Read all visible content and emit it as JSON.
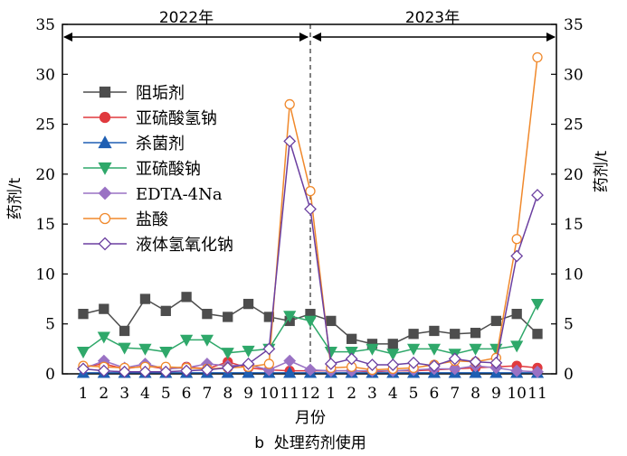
{
  "chart_data": {
    "type": "line",
    "caption": "b  处理药剂使用",
    "xlabel": "月份",
    "ylabel_left": "药剂/t",
    "ylabel_right": "药剂/t",
    "ylim": [
      0,
      35
    ],
    "yticks": [
      0,
      5,
      10,
      15,
      20,
      25,
      30,
      35
    ],
    "period_labels": [
      "2022年",
      "2023年"
    ],
    "categories": [
      "1",
      "2",
      "3",
      "4",
      "5",
      "6",
      "7",
      "8",
      "9",
      "10",
      "11",
      "12",
      "1",
      "2",
      "3",
      "4",
      "5",
      "6",
      "7",
      "8",
      "9",
      "10",
      "11"
    ],
    "legend_position": "top-left",
    "series": [
      {
        "name": "阻垢剂",
        "color": "#4d4d4d",
        "marker": "square",
        "filled": true,
        "values": [
          6.0,
          6.5,
          4.3,
          7.5,
          6.3,
          7.7,
          6.0,
          5.7,
          7.0,
          5.7,
          5.3,
          6.0,
          5.3,
          3.5,
          3.0,
          3.0,
          4.0,
          4.3,
          4.0,
          4.1,
          5.3,
          6.0,
          4.0
        ]
      },
      {
        "name": "亚硫酸氢钠",
        "color": "#e03a3e",
        "marker": "circle",
        "filled": true,
        "values": [
          0.7,
          1.0,
          0.5,
          0.8,
          0.5,
          0.7,
          0.5,
          1.2,
          0.6,
          0.4,
          0.3,
          0.3,
          0.3,
          0.3,
          0.2,
          0.3,
          0.3,
          0.4,
          0.5,
          0.6,
          0.7,
          0.8,
          0.6
        ]
      },
      {
        "name": "杀菌剂",
        "color": "#1f5fb3",
        "marker": "triangle-up",
        "filled": true,
        "values": [
          0.1,
          0.1,
          0.1,
          0.1,
          0.1,
          0.1,
          0.1,
          0.1,
          0.1,
          0.1,
          0.1,
          0.1,
          0.1,
          0.1,
          0.1,
          0.1,
          0.1,
          0.1,
          0.1,
          0.1,
          0.1,
          0.1,
          0.1
        ]
      },
      {
        "name": "亚硫酸钠",
        "color": "#2fa86a",
        "marker": "triangle-down",
        "filled": true,
        "values": [
          2.2,
          3.7,
          2.6,
          2.5,
          2.2,
          3.4,
          3.4,
          2.1,
          2.3,
          2.5,
          5.8,
          5.3,
          2.2,
          2.2,
          2.5,
          2.0,
          2.5,
          2.5,
          2.0,
          2.5,
          2.5,
          2.8,
          7.0
        ]
      },
      {
        "name": "EDTA-4Na",
        "color": "#9a72c4",
        "marker": "diamond",
        "filled": true,
        "values": [
          0.5,
          1.3,
          0.6,
          1.0,
          0.5,
          0.6,
          1.0,
          0.8,
          0.9,
          0.4,
          1.3,
          0.4,
          0.3,
          0.3,
          0.3,
          0.3,
          0.4,
          0.5,
          0.5,
          0.8,
          0.6,
          0.3,
          0.2
        ]
      },
      {
        "name": "盐酸",
        "color": "#f0892c",
        "marker": "circle",
        "filled": false,
        "values": [
          0.8,
          0.7,
          0.6,
          0.7,
          0.7,
          0.6,
          0.5,
          0.6,
          0.7,
          1.0,
          27.0,
          18.3,
          0.6,
          0.7,
          0.4,
          0.5,
          0.6,
          0.9,
          1.3,
          1.2,
          1.6,
          13.5,
          31.7
        ]
      },
      {
        "name": "液体氢氧化钠",
        "color": "#6b3fa0",
        "marker": "diamond",
        "filled": false,
        "values": [
          0.5,
          0.3,
          0.2,
          0.2,
          0.2,
          0.3,
          0.4,
          0.6,
          1.0,
          2.5,
          23.3,
          16.5,
          1.0,
          1.5,
          0.9,
          0.9,
          1.1,
          0.8,
          1.5,
          1.2,
          1.1,
          11.8,
          17.9
        ]
      }
    ]
  }
}
